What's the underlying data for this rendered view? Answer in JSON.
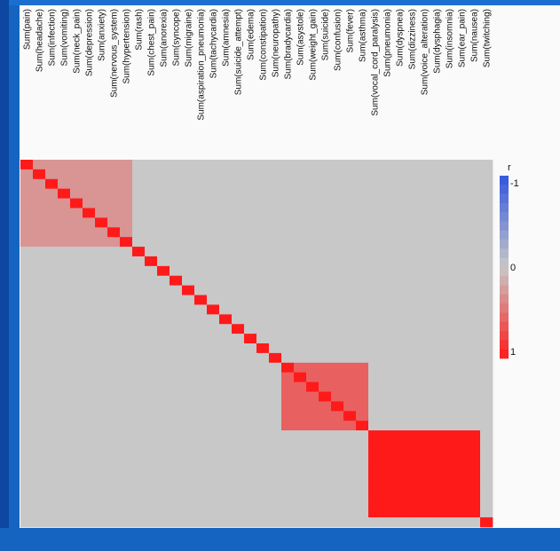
{
  "chart_data": {
    "type": "heatmap",
    "variables": [
      "Sum(pain)",
      "Sum(headache)",
      "Sum(infection)",
      "Sum(vomiting)",
      "Sum(neck_pain)",
      "Sum(depression)",
      "Sum(anxiety)",
      "Sum(nervous_system)",
      "Sum(hypertension)",
      "Sum(rash)",
      "Sum(chest_pain)",
      "Sum(anorexia)",
      "Sum(syncope)",
      "Sum(migraine)",
      "Sum(aspiration_pneumonia)",
      "Sum(tachycardia)",
      "Sum(amnesia)",
      "Sum(suicide_attempt)",
      "Sum(edema)",
      "Sum(constipation)",
      "Sum(neuropathy)",
      "Sum(bradycardia)",
      "Sum(asystole)",
      "Sum(weight_gain)",
      "Sum(suicide)",
      "Sum(confusion)",
      "Sum(fever)",
      "Sum(asthma)",
      "Sum(vocal_cord_paralysis)",
      "Sum(pneumonia)",
      "Sum(dyspnea)",
      "Sum(dizziness)",
      "Sum(voice_alteration)",
      "Sum(dysphagia)",
      "Sum(insomnia)",
      "Sum(ear_pain)",
      "Sum(nausea)",
      "Sum(twitching)"
    ],
    "blocks": [
      {
        "rows": [
          0,
          8
        ],
        "cols": [
          0,
          8
        ],
        "r": 0.3
      },
      {
        "rows": [
          21,
          27
        ],
        "cols": [
          21,
          27
        ],
        "r": 0.6
      },
      {
        "rows": [
          28,
          36
        ],
        "cols": [
          28,
          36
        ],
        "r": 1.0
      }
    ],
    "diagonal_r": 1,
    "color_scale": {
      "label": "r",
      "ticks": [
        "-1",
        "0",
        "1"
      ],
      "min": -1,
      "max": 1,
      "low_color": "#3355dd",
      "mid_color": "#c8c8c8",
      "high_color": "#ff1a1a"
    },
    "legend_position": "right"
  }
}
